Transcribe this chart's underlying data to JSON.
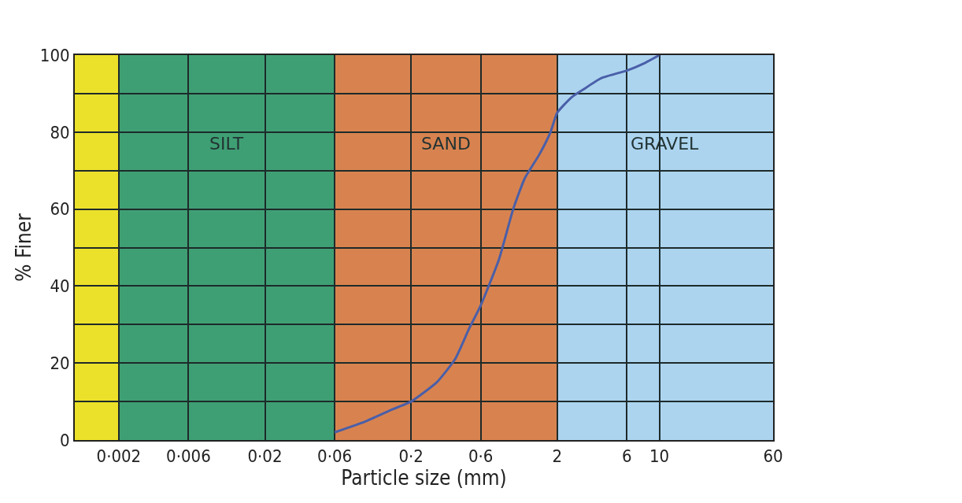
{
  "chart_data": {
    "type": "line",
    "xlabel": "Particle size (mm)",
    "ylabel": "% Finer",
    "log": "x",
    "grid": true,
    "marker": "none",
    "line_style": "solid",
    "xlim": [
      0.001,
      60
    ],
    "xticks": [
      {
        "value": 0.002,
        "label": "0·002"
      },
      {
        "value": 0.006,
        "label": "0·006"
      },
      {
        "value": 0.02,
        "label": "0·02"
      },
      {
        "value": 0.06,
        "label": "0·06"
      },
      {
        "value": 0.2,
        "label": "0·2"
      },
      {
        "value": 0.6,
        "label": "0·6"
      },
      2,
      6,
      10,
      60
    ],
    "ylim": [
      0,
      100
    ],
    "yticks": [
      0,
      {
        "value": 10,
        "label": null
      },
      20,
      {
        "value": 30,
        "label": null
      },
      40,
      {
        "value": 50,
        "label": null
      },
      60,
      {
        "value": 70,
        "label": null
      },
      80,
      {
        "value": 90,
        "label": null
      },
      100
    ],
    "x": [
      0.06,
      0.1,
      0.15,
      0.2,
      0.3,
      0.4,
      0.5,
      0.6,
      0.8,
      1,
      1.2,
      1.5,
      1.8,
      2,
      2.5,
      3,
      4,
      6,
      8,
      10
    ],
    "series": [
      {
        "color": "#4a5fa8",
        "values": [
          2,
          5,
          8,
          10,
          15,
          21,
          29,
          35,
          47,
          60,
          68,
          74,
          80,
          85,
          89,
          91,
          94,
          96,
          98,
          100
        ]
      }
    ],
    "bands": [
      {
        "axis": "x",
        "from": 0.001,
        "to": 0.002,
        "label": null,
        "color": "#ece12a"
      },
      {
        "axis": "x",
        "from": 0.002,
        "to": 0.06,
        "label": "SILT",
        "color": "#3f9f74"
      },
      {
        "axis": "x",
        "from": 0.06,
        "to": 2,
        "label": "SAND",
        "color": "#d8834f"
      },
      {
        "axis": "x",
        "from": 2,
        "to": 60,
        "label": "GRAVEL",
        "color": "#acd4ef"
      }
    ]
  }
}
